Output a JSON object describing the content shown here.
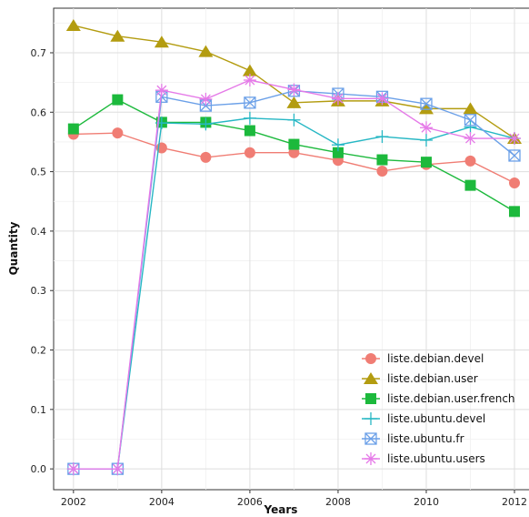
{
  "chart_data": {
    "type": "line",
    "xlabel": "Years",
    "ylabel": "Quantity",
    "x": [
      2002,
      2003,
      2004,
      2005,
      2006,
      2007,
      2008,
      2009,
      2010,
      2011,
      2012
    ],
    "xlim": [
      2001.55,
      2012.35
    ],
    "ylim": [
      -0.035,
      0.775
    ],
    "xticks": [
      2002,
      2004,
      2006,
      2008,
      2010,
      2012
    ],
    "xtick_labels": [
      "2002",
      "2004",
      "2006",
      "2008",
      "2010",
      "2012"
    ],
    "yticks": [
      0.0,
      0.1,
      0.2,
      0.3,
      0.4,
      0.5,
      0.6,
      0.7
    ],
    "ytick_labels": [
      "0.0",
      "0.1",
      "0.2",
      "0.3",
      "0.4",
      "0.5",
      "0.6",
      "0.7"
    ],
    "grid": true,
    "legend_position": "bottom-right",
    "series": [
      {
        "name": "liste.debian.devel",
        "color": "#f07d74",
        "marker": "circle",
        "values": [
          0.563,
          0.565,
          0.54,
          0.524,
          0.532,
          0.532,
          0.519,
          0.501,
          0.512,
          0.518,
          0.481
        ]
      },
      {
        "name": "liste.debian.user",
        "color": "#b39c10",
        "marker": "triangle",
        "values": [
          0.746,
          0.728,
          0.718,
          0.702,
          0.67,
          0.616,
          0.619,
          0.619,
          0.606,
          0.606,
          0.556
        ]
      },
      {
        "name": "liste.debian.user.french",
        "color": "#1cb93c",
        "marker": "square",
        "values": [
          0.572,
          0.621,
          0.583,
          0.583,
          0.569,
          0.546,
          0.532,
          0.52,
          0.516,
          0.477,
          0.433
        ]
      },
      {
        "name": "liste.ubuntu.devel",
        "color": "#26b7c4",
        "marker": "plus",
        "values": [
          0.0,
          0.0,
          0.582,
          0.58,
          0.59,
          0.587,
          0.545,
          0.559,
          0.553,
          0.575,
          0.556
        ]
      },
      {
        "name": "liste.ubuntu.fr",
        "color": "#6ba0e8",
        "marker": "boxcross",
        "values": [
          0.0,
          0.0,
          0.626,
          0.611,
          0.616,
          0.636,
          0.631,
          0.626,
          0.614,
          0.587,
          0.527
        ]
      },
      {
        "name": "liste.ubuntu.users",
        "color": "#e57ae8",
        "marker": "asterisk",
        "values": [
          0.0,
          0.0,
          0.637,
          0.622,
          0.654,
          0.638,
          0.623,
          0.623,
          0.574,
          0.556,
          0.556
        ]
      }
    ]
  }
}
